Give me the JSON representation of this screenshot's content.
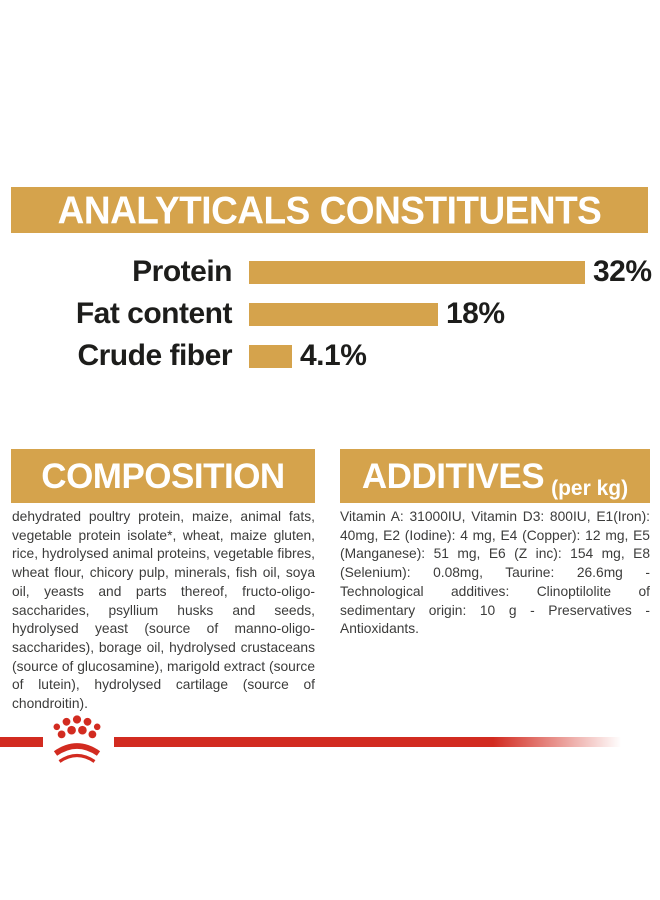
{
  "header": {
    "title": "ANALYTICALS CONSTITUENTS"
  },
  "chart_data": {
    "type": "bar",
    "title": "ANALYTICALS CONSTITUENTS",
    "categories": [
      "Protein",
      "Fat content",
      "Crude fiber"
    ],
    "values": [
      32,
      18,
      4.1
    ],
    "value_labels": [
      "32%",
      "18%",
      "4.1%"
    ],
    "unit": "%",
    "xlim": [
      0,
      32
    ],
    "orientation": "horizontal",
    "grid": false,
    "bar_color": "#D5A34C"
  },
  "composition": {
    "title": "COMPOSITION",
    "body": "dehydrated poultry protein, maize, animal fats, vegetable protein isolate*, wheat, maize gluten, rice, hydrolysed animal proteins, vegetable fibres, wheat flour, chicory pulp, minerals, fish oil, soya oil, yeasts and parts thereof, fructo-oligo-saccharides, psyllium husks and seeds, hydrolysed yeast (source of manno-oligo-saccharides), borage oil, hydrolysed crustaceans (source of glucosamine), marigold extract (source of lutein), hydrolysed cartilage (source of chondroitin)."
  },
  "additives": {
    "title": "ADDITIVES",
    "subtitle": "(per kg)",
    "body": "Vitamin A: 31000IU, Vitamin D3: 800IU, E1(Iron): 40mg, E2 (Iodine): 4 mg, E4 (Copper): 12 mg, E5 (Manganese): 51 mg, E6 (Z inc): 154 mg, E8 (Selenium): 0.08mg, Taurine: 26.6mg - Technological additives: Clinoptilolite of sedimentary origin: 10 g - Preservatives -Antioxidants."
  },
  "footer": {
    "logo": "royal-canin-crown"
  },
  "colors": {
    "gold": "#D5A34C",
    "red": "#D22B20",
    "heading_text": "#FFFFFF",
    "label_text": "#1D1D1B",
    "body_text": "#3C3C3B"
  }
}
